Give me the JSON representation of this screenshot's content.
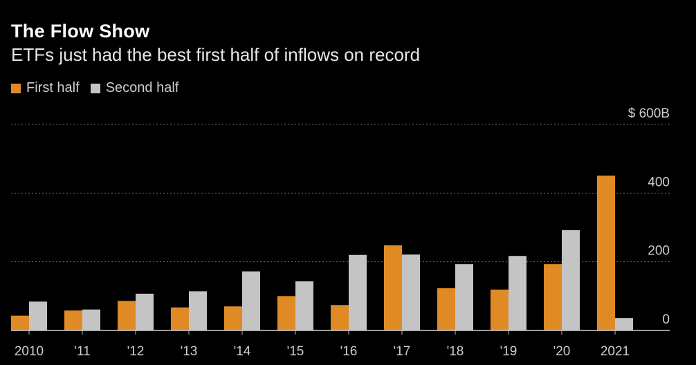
{
  "chart_data": {
    "type": "bar",
    "title": "The Flow Show",
    "subtitle": "ETFs just had the best first half of inflows on record",
    "categories": [
      "2010",
      "'11",
      "'12",
      "'13",
      "'14",
      "'15",
      "'16",
      "'17",
      "'18",
      "'19",
      "'20",
      "2021"
    ],
    "series": [
      {
        "name": "First half",
        "color": "#e08a26",
        "values": [
          43,
          58,
          86,
          67,
          70,
          100,
          74,
          248,
          123,
          119,
          193,
          451
        ]
      },
      {
        "name": "Second half",
        "color": "#c4c4c4",
        "values": [
          84,
          61,
          107,
          114,
          172,
          143,
          220,
          221,
          193,
          217,
          292,
          36
        ]
      }
    ],
    "ylim": [
      0,
      600
    ],
    "y_ticks": [
      {
        "value": 0,
        "label": "0"
      },
      {
        "value": 200,
        "label": "200"
      },
      {
        "value": 400,
        "label": "400"
      },
      {
        "value": 600,
        "label": "$ 600B"
      }
    ],
    "xlabel": "",
    "ylabel": "",
    "grid": true,
    "legend_position": "top-left"
  }
}
